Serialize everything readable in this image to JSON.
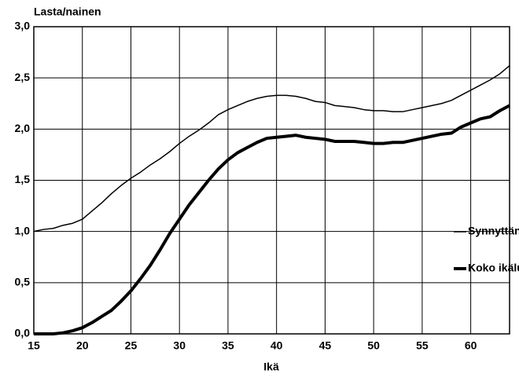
{
  "chart_data": {
    "type": "line",
    "ylabel": "Lasta/nainen",
    "xlabel": "Ikä",
    "x": [
      15,
      16,
      17,
      18,
      19,
      20,
      21,
      22,
      23,
      24,
      25,
      26,
      27,
      28,
      29,
      30,
      31,
      32,
      33,
      34,
      35,
      36,
      37,
      38,
      39,
      40,
      41,
      42,
      43,
      44,
      45,
      46,
      47,
      48,
      49,
      50,
      51,
      52,
      53,
      54,
      55,
      56,
      57,
      58,
      59,
      60,
      61,
      62,
      63,
      64
    ],
    "series": [
      {
        "name": "Synnyttäneet",
        "color": "#000000",
        "width": 1.5,
        "values": [
          1.0,
          1.02,
          1.03,
          1.06,
          1.08,
          1.12,
          1.2,
          1.28,
          1.37,
          1.45,
          1.52,
          1.58,
          1.65,
          1.71,
          1.78,
          1.86,
          1.93,
          1.99,
          2.06,
          2.14,
          2.19,
          2.23,
          2.27,
          2.3,
          2.32,
          2.33,
          2.33,
          2.32,
          2.3,
          2.27,
          2.26,
          2.23,
          2.22,
          2.21,
          2.19,
          2.18,
          2.18,
          2.17,
          2.17,
          2.19,
          2.21,
          2.23,
          2.25,
          2.28,
          2.33,
          2.38,
          2.43,
          2.48,
          2.54,
          2.62
        ]
      },
      {
        "name": "Koko ikäluokka",
        "color": "#000000",
        "width": 4,
        "values": [
          0,
          0,
          0,
          0.01,
          0.03,
          0.06,
          0.11,
          0.17,
          0.23,
          0.32,
          0.42,
          0.54,
          0.67,
          0.82,
          0.98,
          1.12,
          1.26,
          1.38,
          1.5,
          1.61,
          1.7,
          1.77,
          1.82,
          1.87,
          1.91,
          1.92,
          1.93,
          1.94,
          1.92,
          1.91,
          1.9,
          1.88,
          1.88,
          1.88,
          1.87,
          1.86,
          1.86,
          1.87,
          1.87,
          1.89,
          1.91,
          1.93,
          1.95,
          1.96,
          2.02,
          2.06,
          2.1,
          2.12,
          2.18,
          2.23
        ]
      }
    ],
    "xlim": [
      15,
      64
    ],
    "xticks": [
      15,
      20,
      25,
      30,
      35,
      40,
      45,
      50,
      55,
      60
    ],
    "ylim": [
      0,
      3
    ],
    "yticks": [
      {
        "value": 0,
        "label": "0,0"
      },
      {
        "value": 0.5,
        "label": "0,5"
      },
      {
        "value": 1,
        "label": "1,0"
      },
      {
        "value": 1.5,
        "label": "1,5"
      },
      {
        "value": 2,
        "label": "2,0"
      },
      {
        "value": 2.5,
        "label": "2,5"
      },
      {
        "value": 3,
        "label": "3,0"
      }
    ],
    "grid": true,
    "legend": "right"
  }
}
